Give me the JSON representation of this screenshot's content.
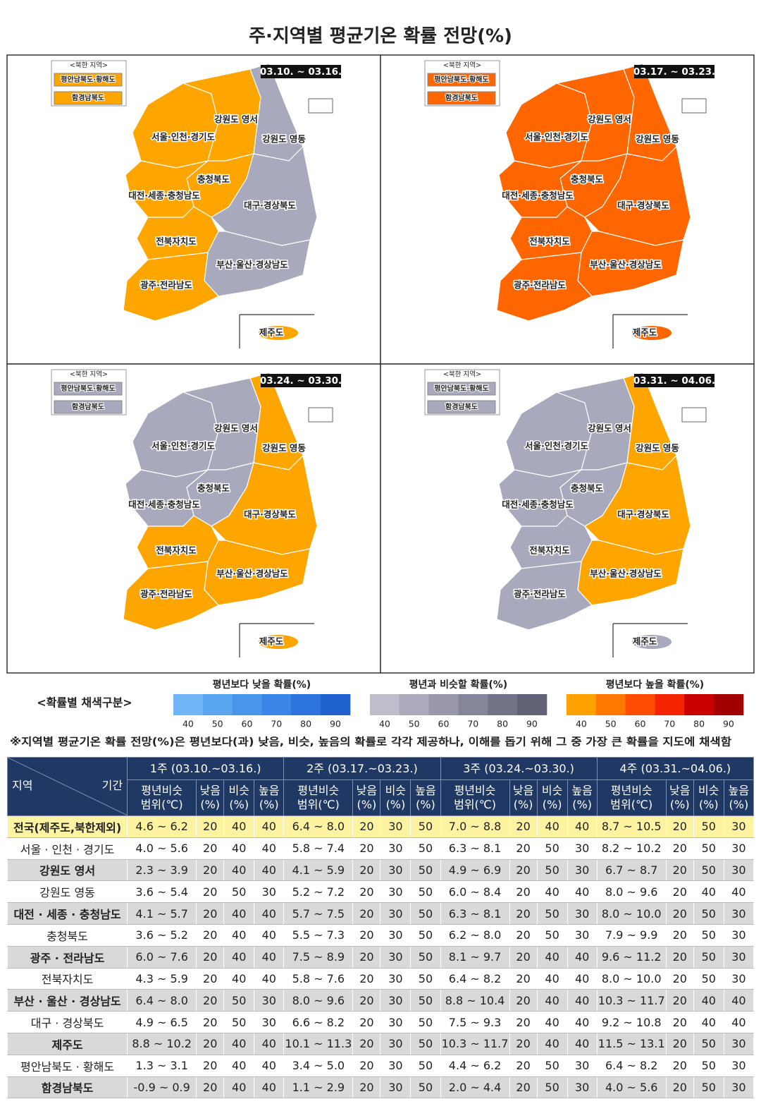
{
  "title": "주·지역별 평균기온 확률 전망(%)",
  "maps": {
    "nk_title": "<북한 지역>",
    "nk_names": [
      "평안남북도·황해도",
      "함경남북도"
    ],
    "region_names": [
      "서울·인천·경기도",
      "강원도 영서",
      "강원도 영동",
      "충청북도",
      "대전·세종·충청남도",
      "대구·경상북도",
      "전북자치도",
      "부산·울산·경상남도",
      "광주·전라남도",
      "제주도"
    ],
    "panels": [
      {
        "period": "03.10. ~ 03.16.",
        "colors": [
          "#ffa500",
          "#ffa500",
          "#a9a9bd",
          "#ffa500",
          "#ffa500",
          "#a9a9bd",
          "#ffa500",
          "#a9a9bd",
          "#ffa500",
          "#ffa500"
        ],
        "nk_colors": [
          "#ffa500",
          "#ffa500"
        ]
      },
      {
        "period": "03.17. ~ 03.23.",
        "colors": [
          "#ff6600",
          "#ff6600",
          "#ff6600",
          "#ff6600",
          "#ff6600",
          "#ff6600",
          "#ff6600",
          "#ff6600",
          "#ff6600",
          "#ff6600"
        ],
        "nk_colors": [
          "#ff6600",
          "#ff6600"
        ]
      },
      {
        "period": "03.24. ~ 03.30.",
        "colors": [
          "#a9a9bd",
          "#a9a9bd",
          "#ffa500",
          "#a9a9bd",
          "#a9a9bd",
          "#ffa500",
          "#ffa500",
          "#ffa500",
          "#ffa500",
          "#ffa500"
        ],
        "nk_colors": [
          "#a9a9bd",
          "#a9a9bd"
        ]
      },
      {
        "period": "03.31. ~ 04.06.",
        "colors": [
          "#a9a9bd",
          "#a9a9bd",
          "#ffa500",
          "#a9a9bd",
          "#a9a9bd",
          "#ffa500",
          "#a9a9bd",
          "#ffa500",
          "#a9a9bd",
          "#a9a9bd"
        ],
        "nk_colors": [
          "#a9a9bd",
          "#a9a9bd"
        ]
      }
    ]
  },
  "legend": {
    "title": "<확률별 채색구분>",
    "groups": [
      {
        "name": "평년보다 낮을 확률(%)",
        "colors": [
          "#70b5f6",
          "#5aa6f1",
          "#4896ec",
          "#3a86e6",
          "#2d74dd",
          "#1f62cf"
        ],
        "ticks": [
          40,
          50,
          60,
          70,
          80,
          90
        ]
      },
      {
        "name": "평년과 비슷할 확률(%)",
        "colors": [
          "#bdbdcc",
          "#aaaabb",
          "#9898aa",
          "#86869a",
          "#747488",
          "#626276"
        ],
        "ticks": [
          40,
          50,
          60,
          70,
          80,
          90
        ]
      },
      {
        "name": "평년보다 높을 확률(%)",
        "colors": [
          "#ffa200",
          "#ff7800",
          "#ff4c00",
          "#f42400",
          "#c80000",
          "#a00000"
        ],
        "ticks": [
          40,
          50,
          60,
          70,
          80,
          90
        ]
      }
    ]
  },
  "note": "※지역별 평균기온 확률 전망(%)은 평년보다(과) 낮음, 비슷, 높음의 확률로 각각 제공하나, 이해를 돕기 위해 그 중 가장 큰 확률을 지도에 채색함",
  "table": {
    "region_header": "지역",
    "period_header": "기간",
    "weeks": [
      "1주 (03.10.~03.16.)",
      "2주 (03.17.~03.23.)",
      "3주 (03.24.~03.30.)",
      "4주 (03.31.~04.06.)"
    ],
    "sub_headers": [
      [
        "평년비슷",
        "범위(℃)"
      ],
      [
        "낮음",
        "(%)"
      ],
      [
        "비슷",
        "(%)"
      ],
      [
        "높음",
        "(%)"
      ]
    ],
    "rows": [
      {
        "region": "전국(제주도,북한제외)",
        "values": [
          [
            "4.6 ~ 6.2",
            20,
            40,
            40
          ],
          [
            "6.4 ~ 8.0",
            20,
            30,
            50
          ],
          [
            "7.0 ~ 8.8",
            20,
            40,
            40
          ],
          [
            "8.7 ~ 10.5",
            20,
            50,
            30
          ]
        ]
      },
      {
        "region": "서울 · 인천 · 경기도",
        "values": [
          [
            "4.0 ~ 5.6",
            20,
            40,
            40
          ],
          [
            "5.8 ~ 7.4",
            20,
            30,
            50
          ],
          [
            "6.3 ~ 8.1",
            20,
            50,
            30
          ],
          [
            "8.2 ~ 10.2",
            20,
            50,
            30
          ]
        ]
      },
      {
        "region": "강원도 영서",
        "values": [
          [
            "2.3 ~ 3.9",
            20,
            40,
            40
          ],
          [
            "4.1 ~ 5.9",
            20,
            30,
            50
          ],
          [
            "4.9 ~ 6.9",
            20,
            50,
            30
          ],
          [
            "6.7 ~ 8.7",
            20,
            50,
            30
          ]
        ]
      },
      {
        "region": "강원도 영동",
        "values": [
          [
            "3.6 ~ 5.4",
            20,
            50,
            30
          ],
          [
            "5.2 ~ 7.2",
            20,
            30,
            50
          ],
          [
            "6.0 ~ 8.4",
            20,
            40,
            40
          ],
          [
            "8.0 ~ 9.6",
            20,
            40,
            40
          ]
        ]
      },
      {
        "region": "대전 · 세종 · 충청남도",
        "values": [
          [
            "4.1 ~ 5.7",
            20,
            40,
            40
          ],
          [
            "5.7 ~ 7.5",
            20,
            30,
            50
          ],
          [
            "6.3 ~ 8.1",
            20,
            50,
            30
          ],
          [
            "8.0 ~ 10.0",
            20,
            50,
            30
          ]
        ]
      },
      {
        "region": "충청북도",
        "values": [
          [
            "3.6 ~ 5.2",
            20,
            40,
            40
          ],
          [
            "5.5 ~ 7.3",
            20,
            30,
            50
          ],
          [
            "6.2 ~ 8.0",
            20,
            50,
            30
          ],
          [
            "7.9 ~ 9.9",
            20,
            50,
            30
          ]
        ]
      },
      {
        "region": "광주 · 전라남도",
        "values": [
          [
            "6.0 ~ 7.6",
            20,
            40,
            40
          ],
          [
            "7.5 ~ 8.9",
            20,
            30,
            50
          ],
          [
            "8.1 ~ 9.7",
            20,
            40,
            40
          ],
          [
            "9.6 ~ 11.2",
            20,
            50,
            30
          ]
        ]
      },
      {
        "region": "전북자치도",
        "values": [
          [
            "4.3 ~ 5.9",
            20,
            40,
            40
          ],
          [
            "5.8 ~ 7.6",
            20,
            30,
            50
          ],
          [
            "6.4 ~ 8.2",
            20,
            40,
            40
          ],
          [
            "8.0 ~ 10.0",
            20,
            50,
            30
          ]
        ]
      },
      {
        "region": "부산 · 울산 · 경상남도",
        "values": [
          [
            "6.4 ~ 8.0",
            20,
            50,
            30
          ],
          [
            "8.0 ~ 9.6",
            20,
            30,
            50
          ],
          [
            "8.8 ~ 10.4",
            20,
            40,
            40
          ],
          [
            "10.3 ~ 11.7",
            20,
            40,
            40
          ]
        ]
      },
      {
        "region": "대구 · 경상북도",
        "values": [
          [
            "4.9 ~ 6.5",
            20,
            50,
            30
          ],
          [
            "6.6 ~ 8.2",
            20,
            30,
            50
          ],
          [
            "7.5 ~ 9.3",
            20,
            40,
            40
          ],
          [
            "9.2 ~ 10.8",
            20,
            40,
            40
          ]
        ]
      },
      {
        "region": "제주도",
        "values": [
          [
            "8.8 ~ 10.2",
            20,
            40,
            40
          ],
          [
            "10.1 ~ 11.3",
            20,
            30,
            50
          ],
          [
            "10.3 ~ 11.7",
            20,
            40,
            40
          ],
          [
            "11.5 ~ 13.1",
            20,
            50,
            30
          ]
        ]
      },
      {
        "region": "평안남북도 · 황해도",
        "values": [
          [
            "1.3 ~ 3.1",
            20,
            40,
            40
          ],
          [
            "3.4 ~ 5.0",
            20,
            30,
            50
          ],
          [
            "4.4 ~ 6.2",
            20,
            50,
            30
          ],
          [
            "6.4 ~ 8.2",
            20,
            50,
            30
          ]
        ]
      },
      {
        "region": "함경남북도",
        "values": [
          [
            "-0.9 ~ 0.9",
            20,
            40,
            40
          ],
          [
            "1.1 ~ 2.9",
            20,
            30,
            50
          ],
          [
            "2.0 ~ 4.4",
            20,
            50,
            30
          ],
          [
            "4.0 ~ 5.6",
            20,
            50,
            30
          ]
        ]
      }
    ]
  }
}
